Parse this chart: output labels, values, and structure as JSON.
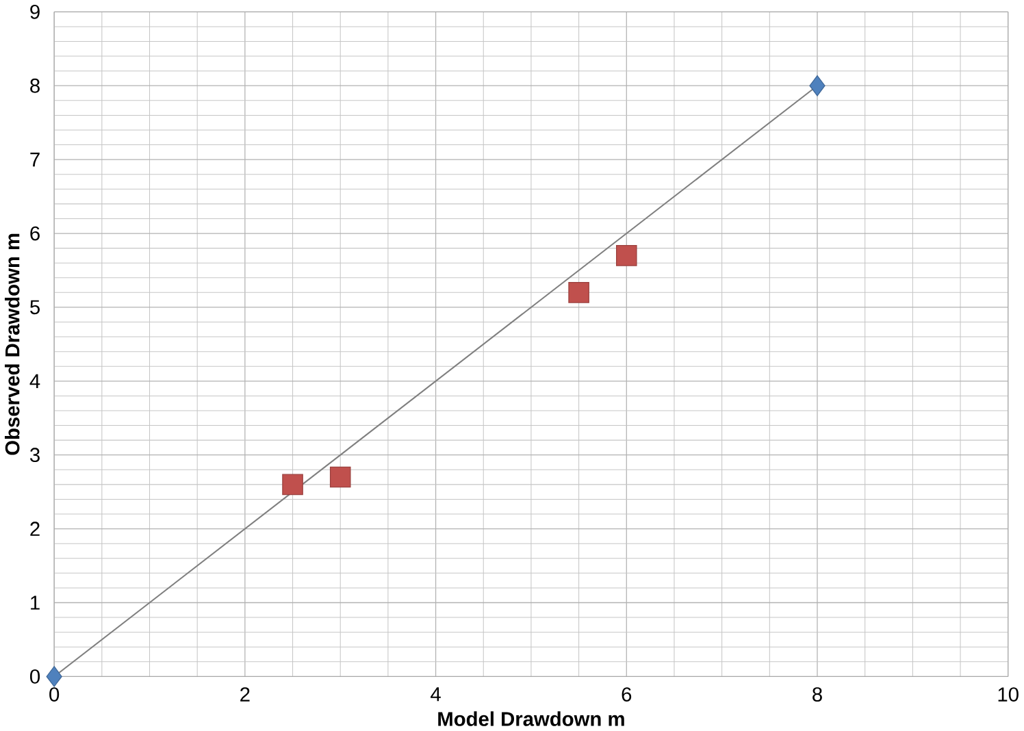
{
  "chart_data": {
    "type": "scatter",
    "xlabel": "Model Drawdown  m",
    "ylabel": "Observed Drawdown  m",
    "xlim": [
      0,
      10
    ],
    "ylim": [
      0,
      9
    ],
    "xticks": [
      0,
      2,
      4,
      6,
      8,
      10
    ],
    "yticks": [
      0,
      1,
      2,
      3,
      4,
      5,
      6,
      7,
      8,
      9
    ],
    "grid": true,
    "series": [
      {
        "type": "line",
        "color": "#7f7f7f",
        "marker": "none",
        "x": [
          0,
          8
        ],
        "values": [
          0,
          8
        ]
      },
      {
        "color": "#4f81bd",
        "marker": "diamond",
        "x": [
          0,
          8
        ],
        "values": [
          0,
          8
        ]
      },
      {
        "color": "#c0504d",
        "marker": "square",
        "x": [
          2.5,
          3,
          5.5,
          6
        ],
        "values": [
          2.6,
          2.7,
          5.2,
          5.7
        ]
      }
    ]
  }
}
